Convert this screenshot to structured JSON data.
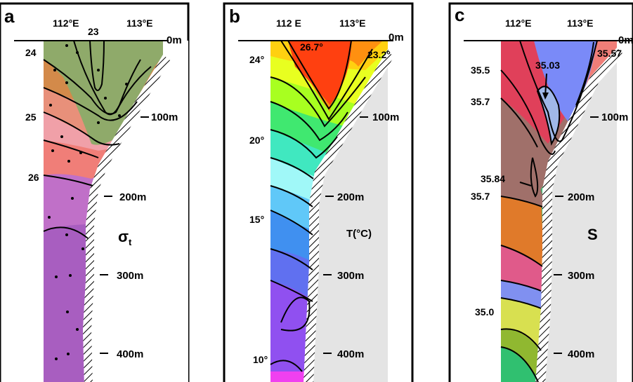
{
  "panels": [
    {
      "letter": "a",
      "lon_labels": [
        "112°E",
        "113°E"
      ],
      "depth_labels": [
        "0m",
        "100m",
        "200m",
        "300m",
        "400m"
      ],
      "variable_label": "σ",
      "variable_sub": "t",
      "contour_labels": [
        "23",
        "24",
        "25",
        "26"
      ]
    },
    {
      "letter": "b",
      "lon_labels": [
        "112 E",
        "113°E"
      ],
      "depth_labels": [
        "0m",
        "100m",
        "200m",
        "300m",
        "400m"
      ],
      "variable_label": "T(°C)",
      "contour_labels": [
        "26.7°",
        "23.2°",
        "24°",
        "20°",
        "15°",
        "10°"
      ]
    },
    {
      "letter": "c",
      "lon_labels": [
        "112°E",
        "113°E"
      ],
      "depth_labels": [
        "0m",
        "100m",
        "200m",
        "300m",
        "400m"
      ],
      "variable_label": "S",
      "contour_labels": [
        "35.03",
        "35.57",
        "35.5",
        "35.7",
        "35.84",
        "35.7",
        "35.0"
      ]
    }
  ],
  "colors": {
    "sigma": [
      "#8faa6a",
      "#d38a4a",
      "#f07e78",
      "#f0a0a8",
      "#c070c8",
      "#a85ec0"
    ],
    "temp": [
      "#ff4010",
      "#ff9010",
      "#ffd010",
      "#e8ff20",
      "#a8ff20",
      "#40e870",
      "#40e8c0",
      "#a0f8f8",
      "#60c8f8",
      "#4090f0",
      "#6070f0",
      "#9050f0",
      "#f040f0"
    ],
    "salinity": [
      "#e0405a",
      "#7a8af8",
      "#a0706a",
      "#e07a2a",
      "#e05a8a",
      "#8090f0",
      "#d8e050",
      "#90b830",
      "#30c070"
    ]
  }
}
